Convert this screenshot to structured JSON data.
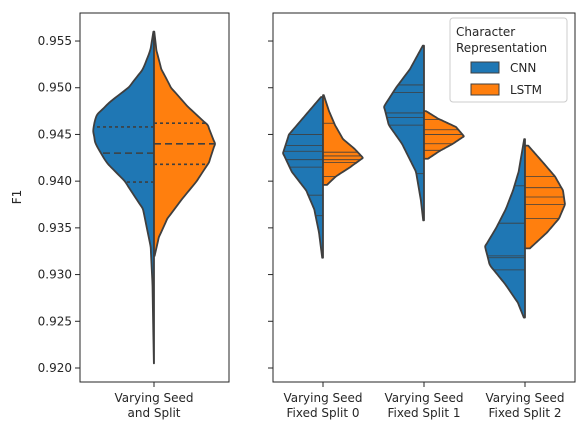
{
  "chart_data": {
    "type": "split-violin",
    "ylabel": "F1",
    "ylim": [
      0.9185,
      0.958
    ],
    "yticks": [
      "0.920",
      "0.925",
      "0.930",
      "0.935",
      "0.940",
      "0.945",
      "0.950",
      "0.955"
    ],
    "legend": {
      "title_lines": [
        "Character",
        "Representation"
      ],
      "placement": "top-right",
      "entries": [
        {
          "name": "CNN",
          "color": "#1f77b4"
        },
        {
          "name": "LSTM",
          "color": "#ff7f0e"
        }
      ]
    },
    "panels": [
      {
        "categories": [
          {
            "label_lines": [
              "Varying Seed",
              "and Split"
            ],
            "inner": "quartile",
            "halves": [
              {
                "series": "CNN",
                "range": [
                  0.9205,
                  0.956
                ],
                "profile": [
                  [
                    0.9205,
                    0.002
                  ],
                  [
                    0.924,
                    0.012
                  ],
                  [
                    0.929,
                    0.025
                  ],
                  [
                    0.933,
                    0.055
                  ],
                  [
                    0.937,
                    0.18
                  ],
                  [
                    0.94,
                    0.48
                  ],
                  [
                    0.942,
                    0.78
                  ],
                  [
                    0.944,
                    0.96
                  ],
                  [
                    0.9455,
                    1.0
                  ],
                  [
                    0.947,
                    0.95
                  ],
                  [
                    0.9485,
                    0.72
                  ],
                  [
                    0.95,
                    0.42
                  ],
                  [
                    0.952,
                    0.18
                  ],
                  [
                    0.954,
                    0.06
                  ],
                  [
                    0.956,
                    0.01
                  ]
                ],
                "quartiles": [
                  0.9399,
                  0.943,
                  0.9458
                ]
              },
              {
                "series": "LSTM",
                "range": [
                  0.932,
                  0.956
                ],
                "profile": [
                  [
                    0.932,
                    0.01
                  ],
                  [
                    0.934,
                    0.08
                  ],
                  [
                    0.936,
                    0.22
                  ],
                  [
                    0.938,
                    0.45
                  ],
                  [
                    0.94,
                    0.7
                  ],
                  [
                    0.942,
                    0.9
                  ],
                  [
                    0.944,
                    1.0
                  ],
                  [
                    0.946,
                    0.88
                  ],
                  [
                    0.948,
                    0.55
                  ],
                  [
                    0.95,
                    0.28
                  ],
                  [
                    0.952,
                    0.12
                  ],
                  [
                    0.954,
                    0.04
                  ],
                  [
                    0.956,
                    0.005
                  ]
                ],
                "quartiles": [
                  0.9418,
                  0.944,
                  0.9462
                ]
              }
            ]
          }
        ]
      },
      {
        "categories": [
          {
            "label_lines": [
              "Varying Seed",
              "Fixed Split 0"
            ],
            "inner": "stick",
            "halves": [
              {
                "series": "CNN",
                "range": [
                  0.9318,
                  0.949
                ],
                "profile": [
                  [
                    0.9318,
                    0.02
                  ],
                  [
                    0.9345,
                    0.1
                  ],
                  [
                    0.937,
                    0.22
                  ],
                  [
                    0.939,
                    0.42
                  ],
                  [
                    0.941,
                    0.78
                  ],
                  [
                    0.943,
                    1.0
                  ],
                  [
                    0.945,
                    0.85
                  ],
                  [
                    0.947,
                    0.45
                  ],
                  [
                    0.949,
                    0.05
                  ]
                ],
                "sticks": [
                  0.9363,
                  0.9385,
                  0.9415,
                  0.9423,
                  0.9432,
                  0.9438,
                  0.945
                ]
              },
              {
                "series": "LSTM",
                "range": [
                  0.9396,
                  0.9492
                ],
                "profile": [
                  [
                    0.9396,
                    0.1
                  ],
                  [
                    0.9405,
                    0.32
                  ],
                  [
                    0.9415,
                    0.68
                  ],
                  [
                    0.9425,
                    1.0
                  ],
                  [
                    0.9435,
                    0.78
                  ],
                  [
                    0.9445,
                    0.5
                  ],
                  [
                    0.946,
                    0.3
                  ],
                  [
                    0.9475,
                    0.15
                  ],
                  [
                    0.9492,
                    0.02
                  ]
                ],
                "sticks": [
                  0.9405,
                  0.942,
                  0.9423,
                  0.9427,
                  0.9431,
                  0.9462
                ]
              }
            ]
          },
          {
            "label_lines": [
              "Varying Seed",
              "Fixed Split 1"
            ],
            "inner": "stick",
            "halves": [
              {
                "series": "CNN",
                "range": [
                  0.9358,
                  0.9545
                ],
                "profile": [
                  [
                    0.9358,
                    0.02
                  ],
                  [
                    0.938,
                    0.08
                  ],
                  [
                    0.941,
                    0.2
                  ],
                  [
                    0.944,
                    0.55
                  ],
                  [
                    0.946,
                    0.88
                  ],
                  [
                    0.948,
                    1.0
                  ],
                  [
                    0.95,
                    0.7
                  ],
                  [
                    0.952,
                    0.35
                  ],
                  [
                    0.9545,
                    0.03
                  ]
                ],
                "sticks": [
                  0.9408,
                  0.946,
                  0.9468,
                  0.9473,
                  0.9495,
                  0.9503
                ]
              },
              {
                "series": "LSTM",
                "range": [
                  0.9424,
                  0.9475
                ],
                "profile": [
                  [
                    0.9424,
                    0.1
                  ],
                  [
                    0.9432,
                    0.38
                  ],
                  [
                    0.944,
                    0.72
                  ],
                  [
                    0.9448,
                    1.0
                  ],
                  [
                    0.9458,
                    0.8
                  ],
                  [
                    0.9467,
                    0.35
                  ],
                  [
                    0.9475,
                    0.05
                  ]
                ],
                "sticks": [
                  0.9433,
                  0.944,
                  0.945,
                  0.9455,
                  0.9466
                ]
              }
            ]
          },
          {
            "label_lines": [
              "Varying Seed",
              "Fixed Split 2"
            ],
            "inner": "stick",
            "halves": [
              {
                "series": "CNN",
                "range": [
                  0.9254,
                  0.9445
                ],
                "profile": [
                  [
                    0.9254,
                    0.03
                  ],
                  [
                    0.927,
                    0.18
                  ],
                  [
                    0.929,
                    0.5
                  ],
                  [
                    0.931,
                    0.88
                  ],
                  [
                    0.933,
                    1.0
                  ],
                  [
                    0.935,
                    0.72
                  ],
                  [
                    0.937,
                    0.48
                  ],
                  [
                    0.939,
                    0.3
                  ],
                  [
                    0.941,
                    0.16
                  ],
                  [
                    0.9445,
                    0.02
                  ]
                ],
                "sticks": [
                  0.9305,
                  0.9318,
                  0.932,
                  0.9355,
                  0.9395
                ]
              },
              {
                "series": "LSTM",
                "range": [
                  0.9328,
                  0.9438
                ],
                "profile": [
                  [
                    0.9328,
                    0.12
                  ],
                  [
                    0.9345,
                    0.55
                  ],
                  [
                    0.936,
                    0.85
                  ],
                  [
                    0.9375,
                    1.0
                  ],
                  [
                    0.939,
                    0.95
                  ],
                  [
                    0.9405,
                    0.75
                  ],
                  [
                    0.942,
                    0.45
                  ],
                  [
                    0.9438,
                    0.08
                  ]
                ],
                "sticks": [
                  0.936,
                  0.9375,
                  0.9383,
                  0.9393,
                  0.9405
                ]
              }
            ]
          }
        ]
      }
    ]
  }
}
